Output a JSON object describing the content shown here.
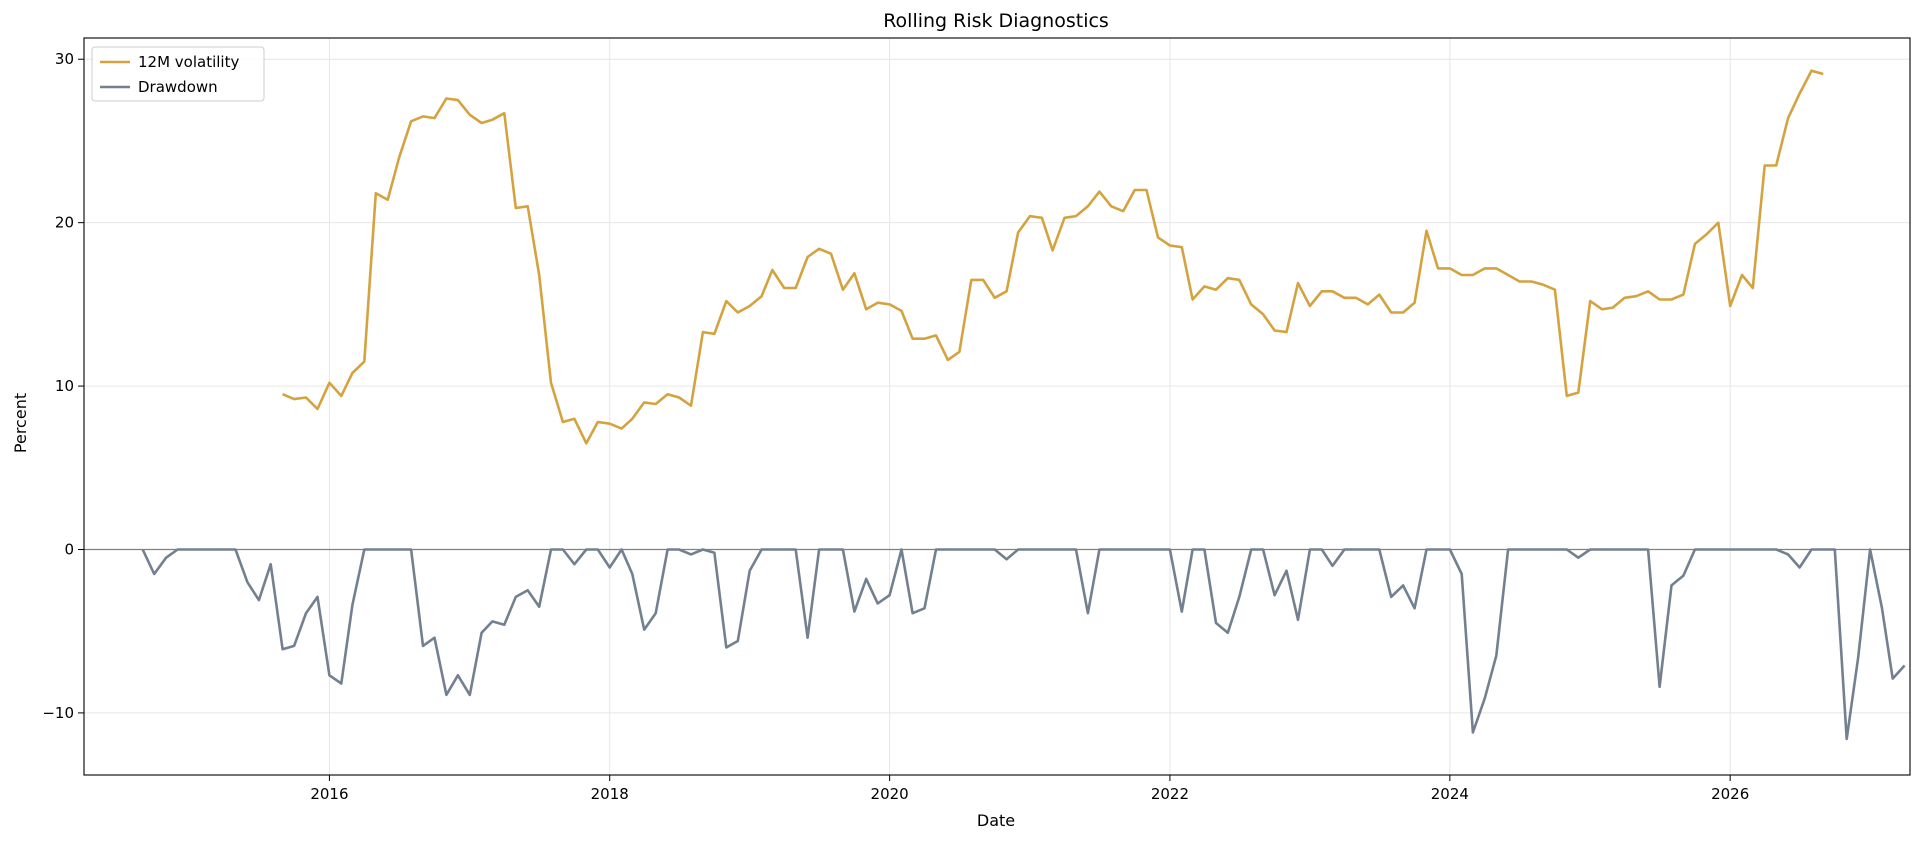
{
  "chart_data": {
    "type": "line",
    "title": "Rolling Risk Diagnostics",
    "xlabel": "Date",
    "ylabel": "Percent",
    "xlim": [
      "2014-04-01",
      "2027-04-15"
    ],
    "ylim": [
      -13.8,
      31.3
    ],
    "x_ticks": [
      "2016",
      "2018",
      "2020",
      "2022",
      "2024",
      "2026"
    ],
    "y_ticks": [
      -10,
      0,
      10,
      20,
      30
    ],
    "grid": true,
    "zero_line": true,
    "legend_position": "top-left",
    "series": [
      {
        "name": "12M volatility",
        "color": "#D4A33F",
        "start": "2015-09",
        "values": [
          9.5,
          9.2,
          9.3,
          8.6,
          10.2,
          9.4,
          10.8,
          11.5,
          21.8,
          21.4,
          24.0,
          26.2,
          26.5,
          26.4,
          27.6,
          27.5,
          26.6,
          26.1,
          26.3,
          26.7,
          20.9,
          21.0,
          16.8,
          10.2,
          7.8,
          8.0,
          6.5,
          7.8,
          7.7,
          7.4,
          8.0,
          9.0,
          8.9,
          9.5,
          9.3,
          8.8,
          13.3,
          13.2,
          15.2,
          14.5,
          14.9,
          15.5,
          17.1,
          16.0,
          16.0,
          17.9,
          18.4,
          18.1,
          15.9,
          16.9,
          14.7,
          15.1,
          15.0,
          14.6,
          12.9,
          12.9,
          13.1,
          11.6,
          12.1,
          16.5,
          16.5,
          15.4,
          15.8,
          19.4,
          20.4,
          20.3,
          18.3,
          20.3,
          20.4,
          21.0,
          21.9,
          21.0,
          20.7,
          22.0,
          22.0,
          19.1,
          18.6,
          18.5,
          15.3,
          16.1,
          15.9,
          16.6,
          16.5,
          15.0,
          14.4,
          13.4,
          13.3,
          16.3,
          14.9,
          15.8,
          15.8,
          15.4,
          15.4,
          15.0,
          15.6,
          14.5,
          14.5,
          15.1,
          19.5,
          17.2,
          17.2,
          16.8,
          16.8,
          17.2,
          17.2,
          16.8,
          16.4,
          16.4,
          16.2,
          15.9,
          9.4,
          9.6,
          15.2,
          14.7,
          14.8,
          15.4,
          15.5,
          15.8,
          15.3,
          15.3,
          15.6,
          18.7,
          19.3,
          20.0,
          14.9,
          16.8,
          16.0,
          23.5,
          23.5,
          26.4,
          27.9,
          29.3,
          29.1
        ]
      },
      {
        "name": "Drawdown",
        "color": "#738090",
        "start": "2014-09",
        "values": [
          0.0,
          -1.5,
          -0.5,
          0.0,
          0.0,
          0.0,
          0.0,
          0.0,
          0.0,
          -2.0,
          -3.1,
          -0.9,
          -6.1,
          -5.9,
          -3.9,
          -2.9,
          -7.7,
          -8.2,
          -3.4,
          0.0,
          0.0,
          0.0,
          0.0,
          0.0,
          -5.9,
          -5.4,
          -8.9,
          -7.7,
          -8.9,
          -5.1,
          -4.4,
          -4.6,
          -2.9,
          -2.5,
          -3.5,
          0.0,
          0.0,
          -0.9,
          0.0,
          0.0,
          -1.1,
          0.0,
          -1.5,
          -4.9,
          -3.9,
          0.0,
          0.0,
          -0.3,
          0.0,
          -0.2,
          -6.0,
          -5.6,
          -1.3,
          0.0,
          0.0,
          0.0,
          0.0,
          -5.4,
          0.0,
          0.0,
          0.0,
          -3.8,
          -1.8,
          -3.3,
          -2.8,
          0.0,
          -3.9,
          -3.6,
          0.0,
          0.0,
          0.0,
          0.0,
          0.0,
          0.0,
          -0.6,
          0.0,
          0.0,
          0.0,
          0.0,
          0.0,
          0.0,
          -3.9,
          0.0,
          0.0,
          0.0,
          0.0,
          0.0,
          0.0,
          0.0,
          -3.8,
          0.0,
          0.0,
          -4.5,
          -5.1,
          -2.9,
          0.0,
          0.0,
          -2.8,
          -1.3,
          -4.3,
          0.0,
          0.0,
          -1.0,
          0.0,
          0.0,
          0.0,
          0.0,
          -2.9,
          -2.2,
          -3.6,
          0.0,
          0.0,
          0.0,
          -1.5,
          -11.2,
          -9.1,
          -6.5,
          0.0,
          0.0,
          0.0,
          0.0,
          0.0,
          0.0,
          -0.5,
          0.0,
          0.0,
          0.0,
          0.0,
          0.0,
          0.0,
          -8.4,
          -2.2,
          -1.6,
          0.0,
          0.0,
          0.0,
          0.0,
          0.0,
          0.0,
          0.0,
          0.0,
          -0.3,
          -1.1,
          0.0,
          0.0,
          0.0,
          -11.6,
          -6.6,
          0.0,
          -3.6,
          -7.9,
          -7.1
        ]
      }
    ]
  }
}
